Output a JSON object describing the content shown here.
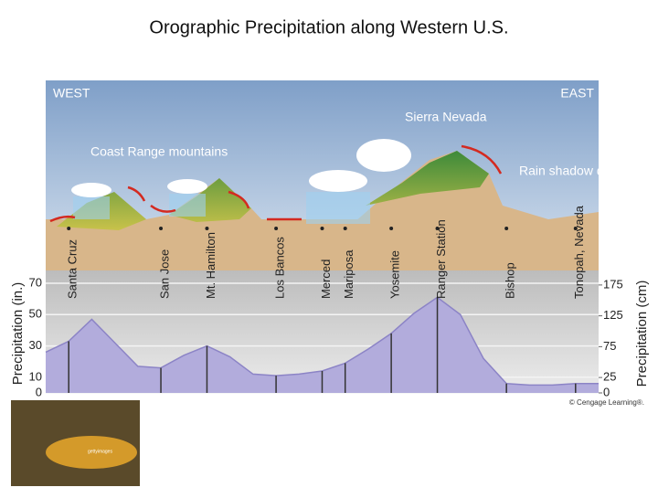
{
  "chart_data": {
    "type": "area",
    "title": "Orographic Precipitation along Western U.S.",
    "annotations": [
      "WEST",
      "EAST",
      "Sierra Nevada",
      "Coast Range mountains",
      "Rain shadow desert"
    ],
    "credit": "© Cengage Learning®.",
    "y_label": "Precipitation (in.)",
    "y2_label": "Precipitation (cm)",
    "categories": [
      null,
      "Santa Cruz",
      null,
      null,
      null,
      "San Jose",
      null,
      "Mt. Hamilton",
      null,
      null,
      "Los Bancos",
      null,
      "Merced",
      "Mariposa",
      null,
      "Yosemite",
      null,
      "Ranger Station",
      null,
      null,
      "Bishop",
      null,
      null,
      "Tonopah, Nevada",
      null
    ],
    "values": [
      26,
      33,
      47,
      32,
      17,
      16,
      24,
      30,
      23,
      12,
      11,
      12,
      14,
      19,
      28,
      38,
      51,
      61,
      50,
      22,
      6,
      5,
      5,
      6,
      6
    ],
    "color": "#b2acdc",
    "ylim": [
      0,
      70
    ],
    "yticks": [
      0,
      10,
      30,
      50,
      70
    ],
    "y2lim": [
      0,
      177.8
    ],
    "y2ticks": [
      0,
      25,
      75,
      125,
      175
    ],
    "grid": true
  },
  "photo": {
    "watermark": "gettyimages"
  }
}
